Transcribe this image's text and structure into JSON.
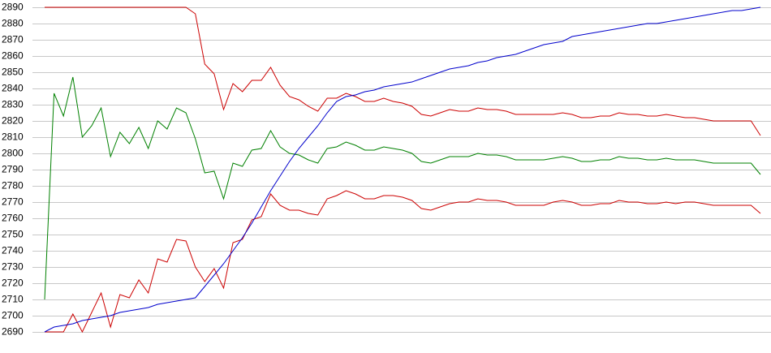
{
  "chart_data": {
    "type": "line",
    "ylim": [
      2690,
      2890
    ],
    "yticks": [
      2690,
      2700,
      2710,
      2720,
      2730,
      2740,
      2750,
      2760,
      2770,
      2780,
      2790,
      2800,
      2810,
      2820,
      2830,
      2840,
      2850,
      2860,
      2870,
      2880,
      2890
    ],
    "grid": true,
    "series": [
      {
        "color": "#cc0000",
        "values": [
          2890,
          2890,
          2890,
          2890,
          2890,
          2890,
          2890,
          2890,
          2890,
          2890,
          2890,
          2890,
          2890,
          2890,
          2890,
          2890,
          2886,
          2855,
          2849,
          2827,
          2843,
          2838,
          2845,
          2845,
          2853,
          2842,
          2835,
          2833,
          2829,
          2826,
          2834,
          2834,
          2837,
          2835,
          2832,
          2832,
          2834,
          2832,
          2831,
          2829,
          2824,
          2823,
          2825,
          2827,
          2826,
          2826,
          2828,
          2827,
          2827,
          2826,
          2824,
          2824,
          2824,
          2824,
          2824,
          2825,
          2824,
          2822,
          2822,
          2823,
          2823,
          2825,
          2824,
          2824,
          2823,
          2823,
          2824,
          2823,
          2822,
          2822,
          2821,
          2820,
          2820,
          2820,
          2820,
          2820,
          2811
        ]
      },
      {
        "color": "#008000",
        "values": [
          2710,
          2837,
          2823,
          2847,
          2810,
          2817,
          2828,
          2798,
          2813,
          2806,
          2816,
          2803,
          2820,
          2815,
          2828,
          2825,
          2809,
          2788,
          2789,
          2772,
          2794,
          2792,
          2802,
          2803,
          2814,
          2804,
          2800,
          2799,
          2796,
          2794,
          2803,
          2804,
          2807,
          2805,
          2802,
          2802,
          2804,
          2803,
          2802,
          2800,
          2795,
          2794,
          2796,
          2798,
          2798,
          2798,
          2800,
          2799,
          2799,
          2798,
          2796,
          2796,
          2796,
          2796,
          2797,
          2798,
          2797,
          2795,
          2795,
          2796,
          2796,
          2798,
          2797,
          2797,
          2796,
          2796,
          2797,
          2796,
          2796,
          2796,
          2795,
          2794,
          2794,
          2794,
          2794,
          2794,
          2787
        ]
      },
      {
        "color": "#cc0000",
        "values": [
          2690,
          2690,
          2690,
          2701,
          2690,
          2702,
          2714,
          2693,
          2713,
          2711,
          2722,
          2714,
          2735,
          2733,
          2747,
          2746,
          2730,
          2721,
          2729,
          2717,
          2745,
          2747,
          2759,
          2761,
          2775,
          2768,
          2765,
          2765,
          2763,
          2762,
          2772,
          2774,
          2777,
          2775,
          2772,
          2772,
          2774,
          2774,
          2773,
          2771,
          2766,
          2765,
          2767,
          2769,
          2770,
          2770,
          2772,
          2771,
          2771,
          2770,
          2768,
          2768,
          2768,
          2768,
          2770,
          2771,
          2770,
          2768,
          2768,
          2769,
          2769,
          2771,
          2770,
          2770,
          2769,
          2769,
          2770,
          2769,
          2770,
          2770,
          2769,
          2768,
          2768,
          2768,
          2768,
          2768,
          2763
        ]
      },
      {
        "color": "#0000cc",
        "values": [
          2690,
          2693,
          2694,
          2695,
          2697,
          2698,
          2699,
          2700,
          2702,
          2703,
          2704,
          2705,
          2707,
          2708,
          2709,
          2710,
          2711,
          2718,
          2725,
          2732,
          2740,
          2748,
          2757,
          2767,
          2777,
          2786,
          2795,
          2803,
          2810,
          2817,
          2825,
          2832,
          2835,
          2836,
          2838,
          2839,
          2841,
          2842,
          2843,
          2844,
          2846,
          2848,
          2850,
          2852,
          2853,
          2854,
          2856,
          2857,
          2859,
          2860,
          2861,
          2863,
          2865,
          2867,
          2868,
          2869,
          2872,
          2873,
          2874,
          2875,
          2876,
          2877,
          2878,
          2879,
          2880,
          2880,
          2881,
          2882,
          2883,
          2884,
          2885,
          2886,
          2887,
          2888,
          2888,
          2889,
          2890
        ]
      }
    ]
  }
}
